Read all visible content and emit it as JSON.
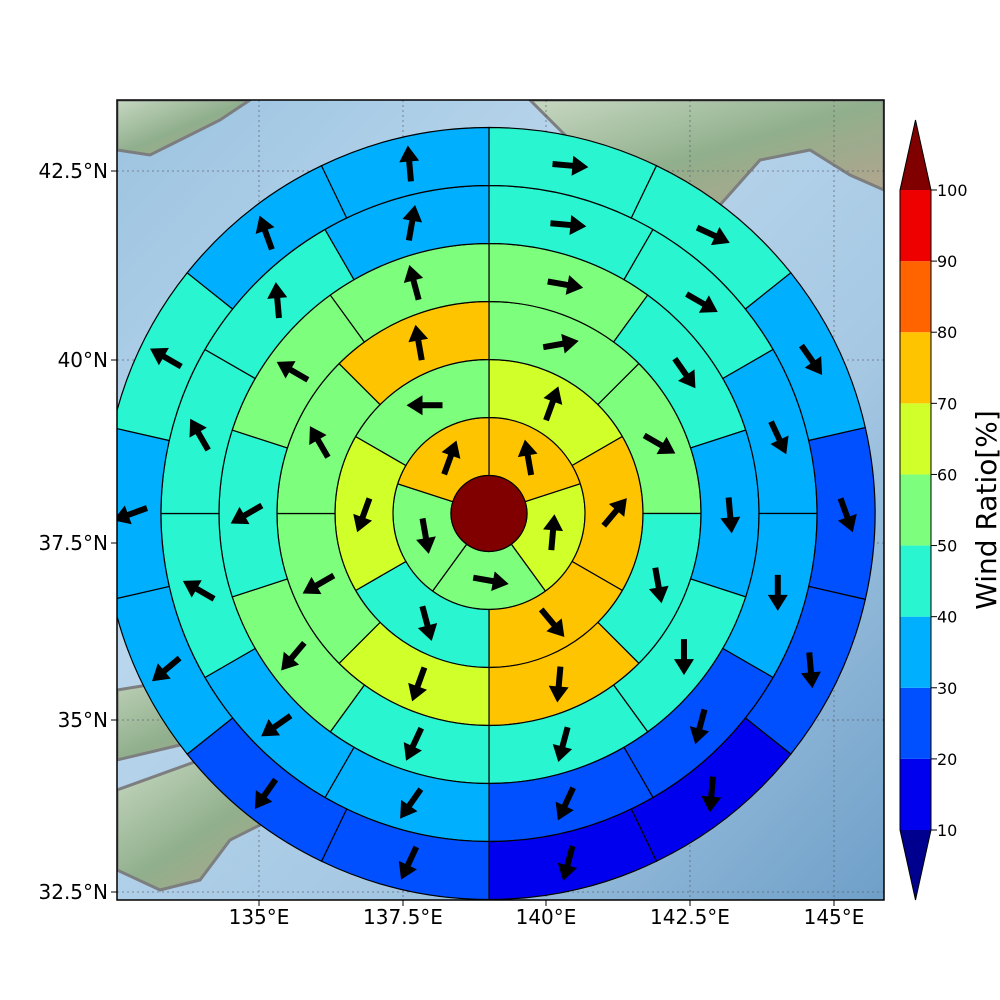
{
  "chart_data": {
    "type": "heatmap",
    "title": "",
    "xlabel": "",
    "ylabel": "",
    "x_ticks": [
      "135°E",
      "137.5°E",
      "140°E",
      "142.5°E",
      "145°E"
    ],
    "y_ticks": [
      "32.5°N",
      "35°N",
      "37.5°N",
      "40°N",
      "42.5°N"
    ],
    "grid": true,
    "colorbar": {
      "label": "Wind Ratio[%]",
      "ticks": [
        "10",
        "20",
        "30",
        "40",
        "50",
        "60",
        "70",
        "80",
        "90",
        "100"
      ],
      "extend": "both",
      "under_color": "#00008f",
      "over_color": "#800000",
      "bins": [
        {
          "from": 10,
          "to": 20,
          "color": "#0000ee"
        },
        {
          "from": 20,
          "to": 30,
          "color": "#0050ff"
        },
        {
          "from": 30,
          "to": 40,
          "color": "#00b0ff"
        },
        {
          "from": 40,
          "to": 50,
          "color": "#29f5d1"
        },
        {
          "from": 50,
          "to": 60,
          "color": "#7dff7d"
        },
        {
          "from": 60,
          "to": 70,
          "color": "#d1ff29"
        },
        {
          "from": 70,
          "to": 80,
          "color": "#ffc400"
        },
        {
          "from": 80,
          "to": 90,
          "color": "#ff6400"
        },
        {
          "from": 90,
          "to": 100,
          "color": "#ee0000"
        }
      ]
    },
    "center": {
      "lon": 139.0,
      "lat": 37.75,
      "value": 100
    },
    "rings": [
      {
        "ring": 1,
        "sectors": 5,
        "values": [
          75,
          65,
          55,
          55,
          75
        ],
        "wind_dir_deg": [
          350,
          5,
          100,
          170,
          20
        ]
      },
      {
        "ring": 2,
        "sectors": 6,
        "values": [
          65,
          75,
          75,
          45,
          65,
          55
        ],
        "wind_dir_deg": [
          20,
          40,
          140,
          165,
          200,
          270
        ]
      },
      {
        "ring": 3,
        "sectors": 8,
        "values": [
          55,
          55,
          45,
          75,
          65,
          55,
          55,
          75
        ],
        "wind_dir_deg": [
          80,
          120,
          170,
          185,
          200,
          240,
          330,
          350
        ]
      },
      {
        "ring": 4,
        "sectors": 10,
        "values": [
          55,
          45,
          35,
          45,
          45,
          45,
          55,
          45,
          55,
          55
        ],
        "wind_dir_deg": [
          100,
          145,
          175,
          180,
          195,
          205,
          220,
          240,
          300,
          345
        ]
      },
      {
        "ring": 5,
        "sectors": 12,
        "values": [
          45,
          45,
          35,
          35,
          25,
          25,
          35,
          35,
          45,
          45,
          45,
          35
        ],
        "wind_dir_deg": [
          95,
          120,
          155,
          180,
          195,
          205,
          215,
          235,
          300,
          330,
          355,
          10
        ]
      },
      {
        "ring": 6,
        "sectors": 14,
        "values": [
          45,
          45,
          35,
          20,
          20,
          15,
          15,
          25,
          25,
          35,
          35,
          45,
          35,
          35
        ],
        "wind_dir_deg": [
          95,
          115,
          145,
          160,
          175,
          185,
          195,
          205,
          215,
          230,
          250,
          300,
          340,
          355
        ]
      }
    ]
  }
}
